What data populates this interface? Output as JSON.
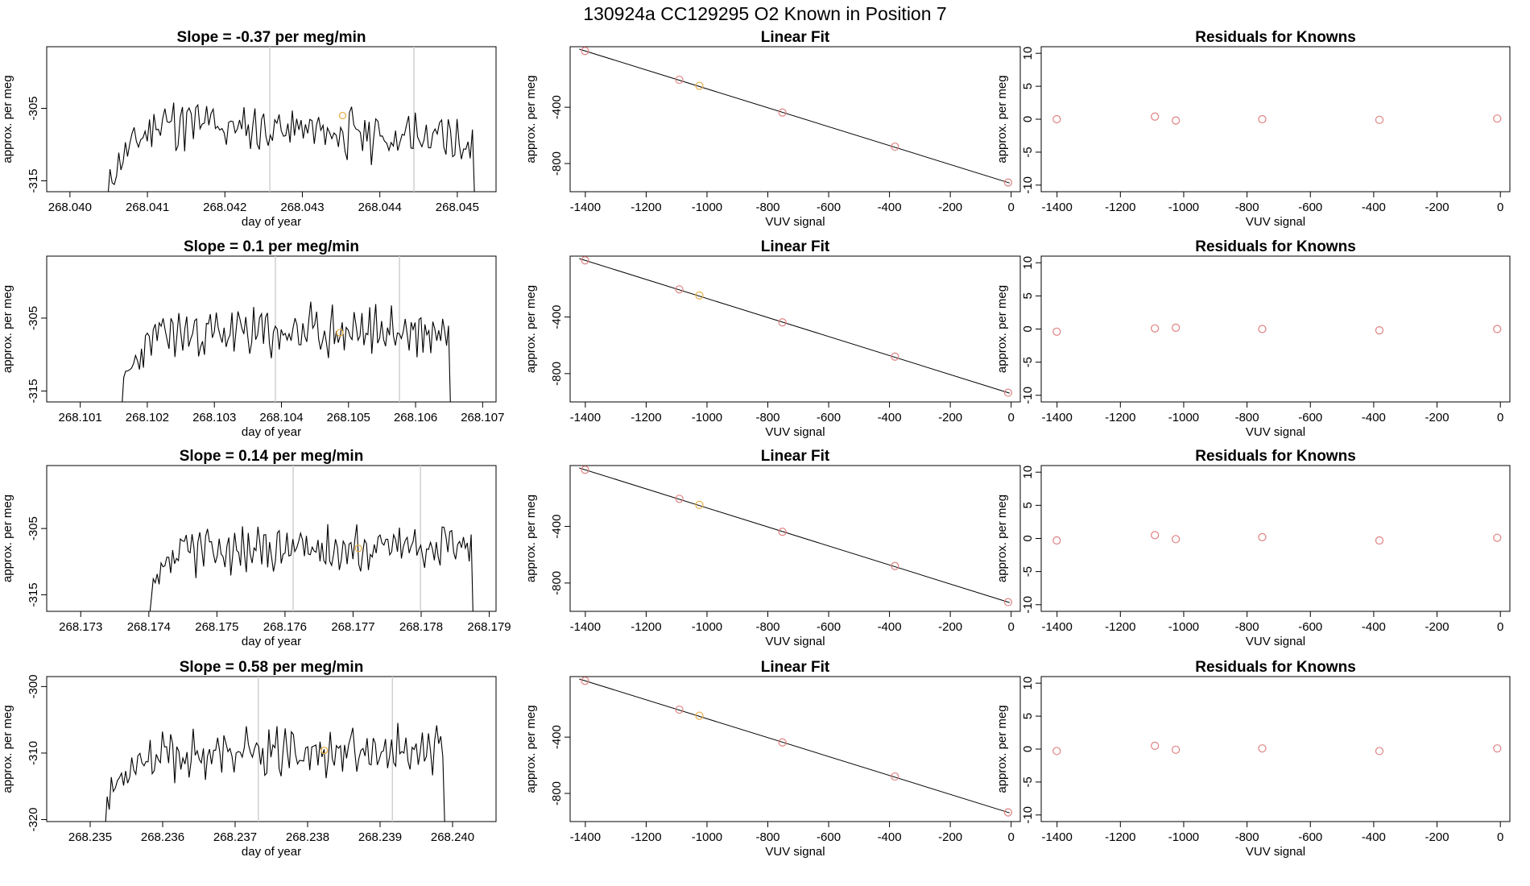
{
  "title": "130924a      CC129295    O2 Known in Position  7",
  "colors": {
    "trace": "#000000",
    "marker_known": "#e08080",
    "marker_highlight": "#e8b04a",
    "vline": "#d0d0d0"
  },
  "chart_data": [
    {
      "type": "line",
      "title": "Slope =  -0.37  per meg/min",
      "xlabel": "day of year",
      "ylabel": "approx. per meg",
      "xlim": [
        268.0397,
        268.0455
      ],
      "ylim": [
        -316.5,
        -296.5
      ],
      "xticks": [
        "268.040",
        "268.041",
        "268.042",
        "268.043",
        "268.044",
        "268.045"
      ],
      "xtick_values": [
        268.04,
        268.041,
        268.042,
        268.043,
        268.044,
        268.045
      ],
      "yticks": [
        "-305",
        "-315"
      ],
      "ytick_values": [
        -305,
        -315
      ],
      "series_range": [
        268.04046,
        268.04528
      ],
      "baseline": -308,
      "amp": 2.5,
      "seed": 11,
      "rise": -3,
      "vlines": [
        268.04258,
        268.04444
      ],
      "highlight_point": {
        "x": 268.04352,
        "y": -306
      }
    },
    {
      "type": "scatter",
      "title": "Linear Fit",
      "xlabel": "VUV signal",
      "ylabel": "approx. per meg",
      "xlim": [
        -1450,
        30
      ],
      "ylim": [
        -1000,
        30
      ],
      "xticks": [
        "-1400",
        "-1200",
        "-1000",
        "-800",
        "-600",
        "-400",
        "-200",
        "0"
      ],
      "xtick_values": [
        -1400,
        -1200,
        -1000,
        -800,
        -600,
        -400,
        -200,
        0
      ],
      "yticks": [
        "-400",
        "-800"
      ],
      "ytick_values": [
        -400,
        -800
      ],
      "points": [
        [
          -1401,
          0
        ],
        [
          -1091,
          -205
        ],
        [
          -1025,
          -248
        ],
        [
          -752,
          -438
        ],
        [
          -382,
          -680
        ],
        [
          -10,
          -935
        ]
      ],
      "highlight_index": 2,
      "fit": [
        [
          -1420,
          13
        ],
        [
          -5,
          -938
        ]
      ]
    },
    {
      "type": "scatter",
      "title": "Residuals for Knowns",
      "xlabel": "VUV signal",
      "ylabel": "approx. per meg",
      "xlim": [
        -1450,
        30
      ],
      "ylim": [
        -11,
        11
      ],
      "xticks": [
        "-1400",
        "-1200",
        "-1000",
        "-800",
        "-600",
        "-400",
        "-200",
        "0"
      ],
      "xtick_values": [
        -1400,
        -1200,
        -1000,
        -800,
        -600,
        -400,
        -200,
        0
      ],
      "yticks": [
        "10",
        "5",
        "0",
        "-5",
        "-10"
      ],
      "ytick_values": [
        10,
        5,
        0,
        -5,
        -10
      ],
      "points": [
        [
          -1401,
          0
        ],
        [
          -1091,
          0.4
        ],
        [
          -1025,
          -0.2
        ],
        [
          -752,
          0
        ],
        [
          -382,
          -0.1
        ],
        [
          -10,
          0.1
        ]
      ]
    },
    {
      "type": "line",
      "title": "Slope =  0.1  per meg/min",
      "xlabel": "day of year",
      "ylabel": "approx. per meg",
      "xlim": [
        268.1005,
        268.1072
      ],
      "ylim": [
        -316.5,
        -296.5
      ],
      "xticks": [
        "268.101",
        "268.102",
        "268.103",
        "268.104",
        "268.105",
        "268.106",
        "268.107"
      ],
      "xtick_values": [
        268.101,
        268.102,
        268.103,
        268.104,
        268.105,
        268.106,
        268.107
      ],
      "yticks": [
        "-305",
        "-315"
      ],
      "ytick_values": [
        -305,
        -315
      ],
      "series_range": [
        268.10159,
        268.10658
      ],
      "baseline": -307,
      "amp": 2.5,
      "seed": 23,
      "rise": 0.5,
      "vlines": [
        268.10391,
        268.10576
      ],
      "highlight_point": {
        "x": 268.10487,
        "y": -307
      }
    },
    {
      "type": "scatter",
      "title": "Linear Fit",
      "xlabel": "VUV signal",
      "ylabel": "approx. per meg",
      "xlim": [
        -1450,
        30
      ],
      "ylim": [
        -1000,
        30
      ],
      "xticks": [
        "-1400",
        "-1200",
        "-1000",
        "-800",
        "-600",
        "-400",
        "-200",
        "0"
      ],
      "xtick_values": [
        -1400,
        -1200,
        -1000,
        -800,
        -600,
        -400,
        -200,
        0
      ],
      "yticks": [
        "-400",
        "-800"
      ],
      "ytick_values": [
        -400,
        -800
      ],
      "points": [
        [
          -1401,
          0
        ],
        [
          -1091,
          -205
        ],
        [
          -1025,
          -248
        ],
        [
          -752,
          -438
        ],
        [
          -382,
          -680
        ],
        [
          -10,
          -935
        ]
      ],
      "highlight_index": 2,
      "fit": [
        [
          -1420,
          13
        ],
        [
          -5,
          -938
        ]
      ]
    },
    {
      "type": "scatter",
      "title": "Residuals for Knowns",
      "xlabel": "VUV signal",
      "ylabel": "approx. per meg",
      "xlim": [
        -1450,
        30
      ],
      "ylim": [
        -11,
        11
      ],
      "xticks": [
        "-1400",
        "-1200",
        "-1000",
        "-800",
        "-600",
        "-400",
        "-200",
        "0"
      ],
      "xtick_values": [
        -1400,
        -1200,
        -1000,
        -800,
        -600,
        -400,
        -200,
        0
      ],
      "yticks": [
        "10",
        "5",
        "0",
        "-5",
        "-10"
      ],
      "ytick_values": [
        10,
        5,
        0,
        -5,
        -10
      ],
      "points": [
        [
          -1401,
          -0.4
        ],
        [
          -1091,
          0.1
        ],
        [
          -1025,
          0.2
        ],
        [
          -752,
          0
        ],
        [
          -382,
          -0.2
        ],
        [
          -10,
          0
        ]
      ]
    },
    {
      "type": "line",
      "title": "Slope =  0.14  per meg/min",
      "xlabel": "day of year",
      "ylabel": "approx. per meg",
      "xlim": [
        268.1725,
        268.1791
      ],
      "ylim": [
        -317.5,
        -295.5
      ],
      "xticks": [
        "268.173",
        "268.174",
        "268.175",
        "268.176",
        "268.177",
        "268.178",
        "268.179"
      ],
      "xtick_values": [
        268.173,
        268.174,
        268.175,
        268.176,
        268.177,
        268.178,
        268.179
      ],
      "yticks": [
        "-305",
        "-315"
      ],
      "ytick_values": [
        -305,
        -315
      ],
      "series_range": [
        268.17398,
        268.17882
      ],
      "baseline": -308,
      "amp": 2.5,
      "seed": 37,
      "rise": 1,
      "vlines": [
        268.17612,
        268.17799
      ],
      "highlight_point": {
        "x": 268.17708,
        "y": -308
      }
    },
    {
      "type": "scatter",
      "title": "Linear Fit",
      "xlabel": "VUV signal",
      "ylabel": "approx. per meg",
      "xlim": [
        -1450,
        30
      ],
      "ylim": [
        -1000,
        30
      ],
      "xticks": [
        "-1400",
        "-1200",
        "-1000",
        "-800",
        "-600",
        "-400",
        "-200",
        "0"
      ],
      "xtick_values": [
        -1400,
        -1200,
        -1000,
        -800,
        -600,
        -400,
        -200,
        0
      ],
      "yticks": [
        "-400",
        "-800"
      ],
      "ytick_values": [
        -400,
        -800
      ],
      "points": [
        [
          -1401,
          0
        ],
        [
          -1091,
          -205
        ],
        [
          -1025,
          -248
        ],
        [
          -752,
          -438
        ],
        [
          -382,
          -680
        ],
        [
          -10,
          -935
        ]
      ],
      "highlight_index": 2,
      "fit": [
        [
          -1420,
          13
        ],
        [
          -5,
          -938
        ]
      ]
    },
    {
      "type": "scatter",
      "title": "Residuals for Knowns",
      "xlabel": "VUV signal",
      "ylabel": "approx. per meg",
      "xlim": [
        -1450,
        30
      ],
      "ylim": [
        -11,
        11
      ],
      "xticks": [
        "-1400",
        "-1200",
        "-1000",
        "-800",
        "-600",
        "-400",
        "-200",
        "0"
      ],
      "xtick_values": [
        -1400,
        -1200,
        -1000,
        -800,
        -600,
        -400,
        -200,
        0
      ],
      "yticks": [
        "10",
        "5",
        "0",
        "-5",
        "-10"
      ],
      "ytick_values": [
        10,
        5,
        0,
        -5,
        -10
      ],
      "points": [
        [
          -1401,
          -0.3
        ],
        [
          -1091,
          0.5
        ],
        [
          -1025,
          -0.1
        ],
        [
          -752,
          0.2
        ],
        [
          -382,
          -0.3
        ],
        [
          -10,
          0.1
        ]
      ]
    },
    {
      "type": "line",
      "title": "Slope =  0.58  per meg/min",
      "xlabel": "day of year",
      "ylabel": "approx. per meg",
      "xlim": [
        268.2344,
        268.2406
      ],
      "ylim": [
        -320.3,
        -298.5
      ],
      "xticks": [
        "268.235",
        "268.236",
        "268.237",
        "268.238",
        "268.239",
        "268.240"
      ],
      "xtick_values": [
        268.235,
        268.236,
        268.237,
        268.238,
        268.239,
        268.24
      ],
      "yticks": [
        "-300",
        "-310",
        "-320"
      ],
      "ytick_values": [
        -300,
        -310,
        -320
      ],
      "series_range": [
        268.23515,
        268.23995
      ],
      "baseline": -310,
      "amp": 2.5,
      "seed": 53,
      "rise": 1.5,
      "vlines": [
        268.23732,
        268.23917
      ],
      "highlight_point": {
        "x": 268.23823,
        "y": -309.6
      }
    },
    {
      "type": "scatter",
      "title": "Linear Fit",
      "xlabel": "VUV signal",
      "ylabel": "approx. per meg",
      "xlim": [
        -1450,
        30
      ],
      "ylim": [
        -1000,
        30
      ],
      "xticks": [
        "-1400",
        "-1200",
        "-1000",
        "-800",
        "-600",
        "-400",
        "-200",
        "0"
      ],
      "xtick_values": [
        -1400,
        -1200,
        -1000,
        -800,
        -600,
        -400,
        -200,
        0
      ],
      "yticks": [
        "-400",
        "-800"
      ],
      "ytick_values": [
        -400,
        -800
      ],
      "points": [
        [
          -1401,
          0
        ],
        [
          -1091,
          -205
        ],
        [
          -1025,
          -248
        ],
        [
          -752,
          -438
        ],
        [
          -382,
          -680
        ],
        [
          -10,
          -935
        ]
      ],
      "highlight_index": 2,
      "fit": [
        [
          -1420,
          13
        ],
        [
          -5,
          -938
        ]
      ]
    },
    {
      "type": "scatter",
      "title": "Residuals for Knowns",
      "xlabel": "VUV signal",
      "ylabel": "approx. per meg",
      "xlim": [
        -1450,
        30
      ],
      "ylim": [
        -11,
        11
      ],
      "xticks": [
        "-1400",
        "-1200",
        "-1000",
        "-800",
        "-600",
        "-400",
        "-200",
        "0"
      ],
      "xtick_values": [
        -1400,
        -1200,
        -1000,
        -800,
        -600,
        -400,
        -200,
        0
      ],
      "yticks": [
        "10",
        "5",
        "0",
        "-5",
        "-10"
      ],
      "ytick_values": [
        10,
        5,
        0,
        -5,
        -10
      ],
      "points": [
        [
          -1401,
          -0.3
        ],
        [
          -1091,
          0.5
        ],
        [
          -1025,
          -0.1
        ],
        [
          -752,
          0.1
        ],
        [
          -382,
          -0.3
        ],
        [
          -10,
          0.1
        ]
      ]
    }
  ]
}
